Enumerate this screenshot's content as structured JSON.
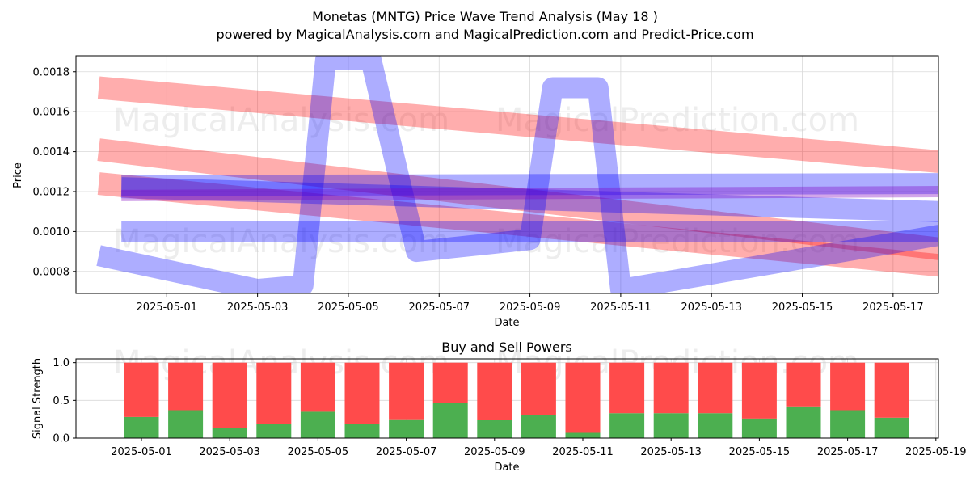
{
  "title_line1": "Monetas (MNTG) Price Wave Trend Analysis (May 18 )",
  "title_line2": "powered by MagicalAnalysis.com and MagicalPrediction.com and Predict-Price.com",
  "watermarks": [
    "MagicalAnalysis.com",
    "MagicalPrediction.com"
  ],
  "colors": {
    "red_band": "#ff0000",
    "blue_band": "#0000ff",
    "purple_band": "#7f00bf",
    "buy": "#4caf50",
    "sell": "#ff4b4b",
    "grid": "#d9d9d9"
  },
  "chart_data": [
    {
      "type": "area",
      "title": "",
      "xlabel": "Date",
      "ylabel": "Price",
      "x_range": [
        "2025-04-29",
        "2025-05-18"
      ],
      "ylim": [
        0.00069,
        0.00188
      ],
      "x_ticks": [
        "2025-05-01",
        "2025-05-03",
        "2025-05-05",
        "2025-05-07",
        "2025-05-09",
        "2025-05-11",
        "2025-05-13",
        "2025-05-15",
        "2025-05-17"
      ],
      "y_ticks": [
        "0.0008",
        "0.0010",
        "0.0012",
        "0.0014",
        "0.0016",
        "0.0018"
      ],
      "grid": true,
      "series": [
        {
          "color": "red",
          "points": [
            [
              "2025-04-29T12:00",
              0.00172
            ],
            [
              "2025-05-18T12:00",
              0.00134
            ]
          ]
        },
        {
          "color": "red",
          "points": [
            [
              "2025-04-29T12:00",
              0.00141
            ],
            [
              "2025-05-18T12:00",
              0.0009
            ]
          ]
        },
        {
          "color": "red",
          "points": [
            [
              "2025-04-29T12:00",
              0.00124
            ],
            [
              "2025-05-18T12:00",
              0.00082
            ]
          ]
        },
        {
          "color": "blue",
          "points": [
            [
              "2025-04-29T12:00",
              0.00088
            ],
            [
              "2025-05-03",
              0.00071
            ],
            [
              "2025-05-04",
              0.00073
            ],
            [
              "2025-05-04T12:00",
              0.00186
            ],
            [
              "2025-05-05T12:00",
              0.00186
            ],
            [
              "2025-05-06T12:00",
              0.0009
            ],
            [
              "2025-05-09",
              0.00096
            ],
            [
              "2025-05-09T12:00",
              0.00172
            ],
            [
              "2025-05-10T12:00",
              0.00172
            ],
            [
              "2025-05-11",
              0.00071
            ],
            [
              "2025-05-18T12:00",
              0.001
            ]
          ]
        },
        {
          "color": "blue",
          "points": [
            [
              "2025-04-30",
              0.00123
            ],
            [
              "2025-05-18",
              0.00124
            ]
          ]
        },
        {
          "color": "blue",
          "points": [
            [
              "2025-04-30",
              0.001
            ],
            [
              "2025-05-18",
              0.001
            ]
          ]
        },
        {
          "color": "blue",
          "points": [
            [
              "2025-04-30",
              0.00122
            ],
            [
              "2025-05-18",
              0.0011
            ]
          ]
        },
        {
          "color": "purple",
          "points": [
            [
              "2025-04-30",
              0.00118
            ],
            [
              "2025-05-18",
              0.0012
            ]
          ]
        }
      ]
    },
    {
      "type": "bar",
      "title": "Buy and Sell Powers",
      "xlabel": "Date",
      "ylabel": "Signal Strength",
      "ylim": [
        0,
        1.05
      ],
      "x_ticks": [
        "2025-05-01",
        "2025-05-03",
        "2025-05-05",
        "2025-05-07",
        "2025-05-09",
        "2025-05-11",
        "2025-05-13",
        "2025-05-15",
        "2025-05-17",
        "2025-05-19"
      ],
      "y_ticks": [
        "0.0",
        "0.5",
        "1.0"
      ],
      "categories": [
        "2025-05-01",
        "2025-05-02",
        "2025-05-03",
        "2025-05-04",
        "2025-05-05",
        "2025-05-06",
        "2025-05-07",
        "2025-05-08",
        "2025-05-09",
        "2025-05-10",
        "2025-05-11",
        "2025-05-12",
        "2025-05-13",
        "2025-05-14",
        "2025-05-15",
        "2025-05-16",
        "2025-05-17",
        "2025-05-18"
      ],
      "series": [
        {
          "values": [
            0.28,
            0.37,
            0.13,
            0.19,
            0.35,
            0.19,
            0.25,
            0.47,
            0.24,
            0.31,
            0.07,
            0.33,
            0.33,
            0.33,
            0.26,
            0.42,
            0.37,
            0.27
          ]
        },
        {
          "values": [
            0.72,
            0.63,
            0.87,
            0.81,
            0.65,
            0.81,
            0.75,
            0.53,
            0.76,
            0.69,
            0.93,
            0.67,
            0.67,
            0.67,
            0.74,
            0.58,
            0.63,
            0.73
          ]
        }
      ]
    }
  ]
}
